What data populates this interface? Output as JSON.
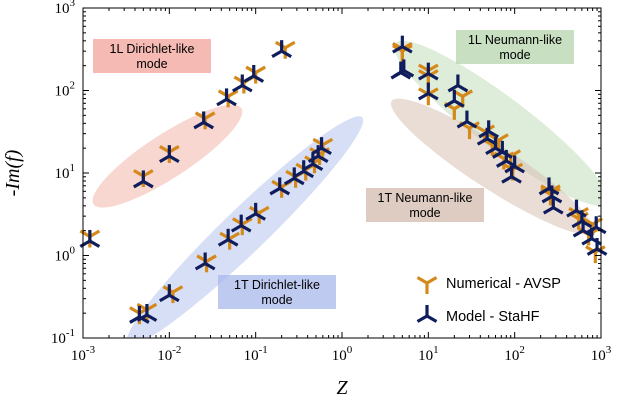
{
  "chart_data": {
    "type": "scatter",
    "xlabel": "Z",
    "ylabel": "-Im(f)",
    "xscale": "log",
    "yscale": "log",
    "xlim": [
      0.001,
      1000
    ],
    "ylim": [
      0.1,
      1000
    ],
    "x_ticks": [
      {
        "base": "10",
        "exp": "-3",
        "value": 0.001
      },
      {
        "base": "10",
        "exp": "-2",
        "value": 0.01
      },
      {
        "base": "10",
        "exp": "-1",
        "value": 0.1
      },
      {
        "base": "10",
        "exp": "0",
        "value": 1
      },
      {
        "base": "10",
        "exp": "1",
        "value": 10
      },
      {
        "base": "10",
        "exp": "2",
        "value": 100
      },
      {
        "base": "10",
        "exp": "3",
        "value": 1000
      }
    ],
    "y_ticks": [
      {
        "base": "10",
        "exp": "-1",
        "value": 0.1
      },
      {
        "base": "10",
        "exp": "0",
        "value": 1
      },
      {
        "base": "10",
        "exp": "1",
        "value": 10
      },
      {
        "base": "10",
        "exp": "2",
        "value": 100
      },
      {
        "base": "10",
        "exp": "3",
        "value": 1000
      }
    ],
    "regions": [
      {
        "lines": [
          "1L Dirichlet-like",
          "mode"
        ],
        "fill": "#f4b6ac",
        "box": "#f1a39a",
        "center": [
          0.0095,
          16
        ],
        "span": [
          5,
          550
        ],
        "angle": -33
      },
      {
        "lines": [
          "1T Dirichlet-like",
          "mode"
        ],
        "fill": "#b7c5ee",
        "box": "#a9b8ec",
        "center": [
          0.075,
          2.0
        ],
        "span": [
          0.0055,
          33
        ],
        "angle": -44
      },
      {
        "lines": [
          "1L Neumann-like",
          "mode"
        ],
        "fill": "#c3dcbb",
        "box": "#b7d4ae",
        "center": [
          70,
          40
        ],
        "span": [
          2.2,
          2600
        ],
        "angle": 37
      },
      {
        "lines": [
          "1T Neumann-like",
          "mode"
        ],
        "fill": "#d8c1b5",
        "box": "#d3b9ac",
        "center": [
          55,
          12
        ],
        "span": [
          2.5,
          1500
        ],
        "angle": 33
      }
    ],
    "series": [
      {
        "name": "Numerical - AVSP",
        "color": "#d4891a",
        "points": [
          [
            0.0012,
            1.7
          ],
          [
            0.005,
            9.2
          ],
          [
            0.01,
            18
          ],
          [
            0.026,
            46
          ],
          [
            0.048,
            85
          ],
          [
            0.073,
            125
          ],
          [
            0.1,
            165
          ],
          [
            0.22,
            330
          ],
          [
            0.0045,
            0.2
          ],
          [
            0.0055,
            0.22
          ],
          [
            0.011,
            0.36
          ],
          [
            0.027,
            0.85
          ],
          [
            0.05,
            1.6
          ],
          [
            0.07,
            2.4
          ],
          [
            0.11,
            3.3
          ],
          [
            0.2,
            6.8
          ],
          [
            0.29,
            9
          ],
          [
            0.38,
            11
          ],
          [
            0.48,
            13.5
          ],
          [
            0.55,
            17
          ],
          [
            0.6,
            22
          ],
          [
            5,
            300
          ],
          [
            10,
            150
          ],
          [
            10,
            90
          ],
          [
            20,
            60
          ],
          [
            30,
            35
          ],
          [
            55,
            22
          ],
          [
            75,
            15
          ],
          [
            95,
            11
          ],
          [
            260,
            5.5
          ],
          [
            550,
            2.8
          ],
          [
            720,
            1.8
          ],
          [
            860,
            1.1
          ],
          [
            5,
            320
          ],
          [
            10,
            175
          ],
          [
            25,
            85
          ],
          [
            45,
            32
          ],
          [
            65,
            25
          ],
          [
            90,
            16
          ],
          [
            260,
            6
          ],
          [
            550,
            3.2
          ],
          [
            800,
            2.4
          ]
        ]
      },
      {
        "name": "Model - StaHF",
        "color": "#0f1d5c",
        "points": [
          [
            0.0012,
            1.5
          ],
          [
            0.005,
            7.9
          ],
          [
            0.01,
            16
          ],
          [
            0.025,
            41
          ],
          [
            0.046,
            78
          ],
          [
            0.07,
            115
          ],
          [
            0.095,
            150
          ],
          [
            0.2,
            300
          ],
          [
            0.0045,
            0.18
          ],
          [
            0.0055,
            0.19
          ],
          [
            0.01,
            0.33
          ],
          [
            0.026,
            0.8
          ],
          [
            0.048,
            1.55
          ],
          [
            0.068,
            2.3
          ],
          [
            0.1,
            3.2
          ],
          [
            0.19,
            6.5
          ],
          [
            0.28,
            8.6
          ],
          [
            0.36,
            10.5
          ],
          [
            0.46,
            12.8
          ],
          [
            0.53,
            16
          ],
          [
            0.58,
            20
          ],
          [
            5,
            340
          ],
          [
            4.8,
            165
          ],
          [
            10,
            160
          ],
          [
            10,
            92
          ],
          [
            20,
            75
          ],
          [
            28,
            42
          ],
          [
            50,
            32
          ],
          [
            60,
            20
          ],
          [
            80,
            14
          ],
          [
            100,
            12
          ],
          [
            250,
            6.5
          ],
          [
            280,
            3.8
          ],
          [
            520,
            3.5
          ],
          [
            620,
            2
          ],
          [
            780,
            1.6
          ],
          [
            900,
            1.2
          ],
          [
            5.2,
            175
          ],
          [
            22,
            115
          ],
          [
            48,
            26
          ],
          [
            72,
            18
          ],
          [
            92,
            9
          ],
          [
            270,
            5.2
          ],
          [
            600,
            2.6
          ],
          [
            880,
            2.2
          ]
        ]
      }
    ],
    "legend": {
      "position": "bottom-right"
    }
  }
}
